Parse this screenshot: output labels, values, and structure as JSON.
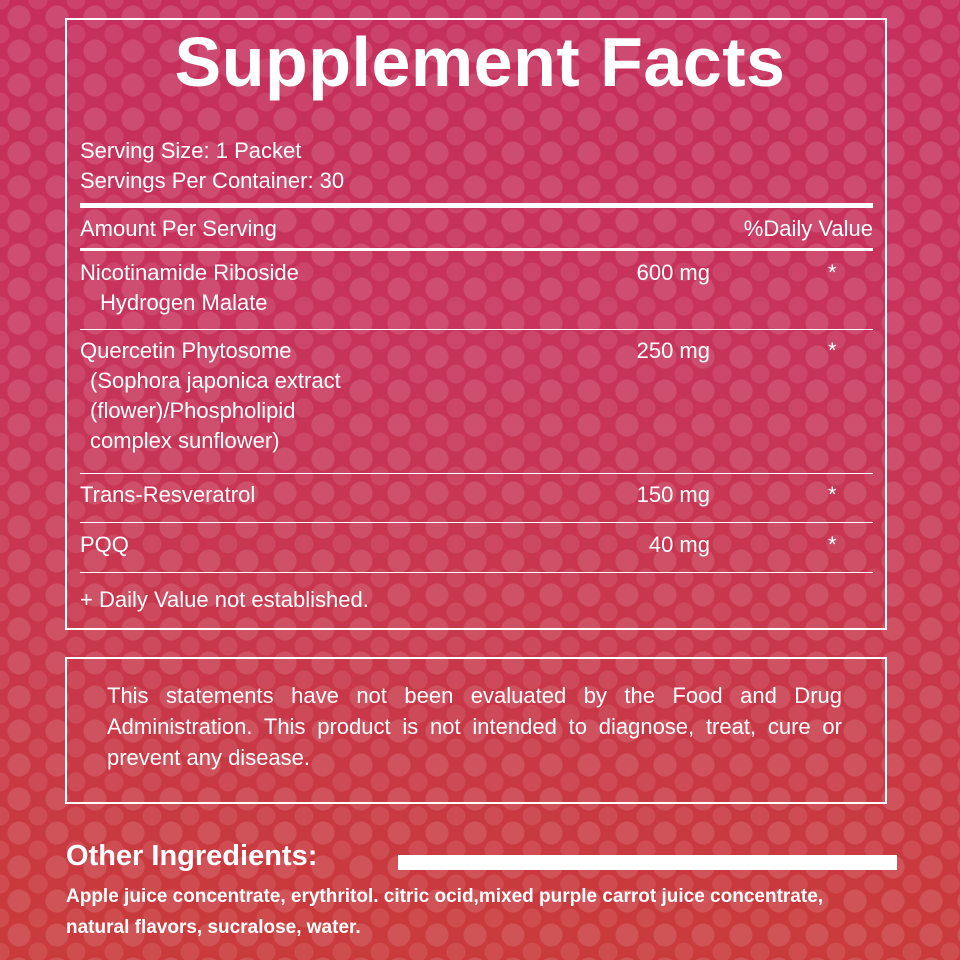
{
  "title": "Supplement Facts",
  "serving_size": "Serving Size: 1 Packet",
  "servings_per_container": "Servings Per Container: 30",
  "header": {
    "amount": "Amount Per Serving",
    "dv": "%Daily Value"
  },
  "rows": [
    {
      "name": "Nicotinamide Riboside",
      "sub": [
        "Hydrogen Malate"
      ],
      "amount": "600 mg",
      "dv": "*"
    },
    {
      "name": "Quercetin Phytosome",
      "sub": [
        "(Sophora japonica extract",
        "(flower)/Phospholipid",
        "complex sunflower)"
      ],
      "amount": "250 mg",
      "dv": "*"
    },
    {
      "name": "Trans-Resveratrol",
      "sub": [],
      "amount": "150 mg",
      "dv": "*"
    },
    {
      "name": "PQQ",
      "sub": [],
      "amount": "40 mg",
      "dv": "*"
    }
  ],
  "footnote": "+ Daily Value not established.",
  "statement": "This statements have not been evaluated by the Food and Drug Administration. This product is not intended to diagnose, treat, cure or prevent any disease.",
  "other_ingredients": {
    "heading": "Other Ingredients:",
    "text": "Apple juice concentrate, erythritol. citric ocid,mixed purple carrot juice concentrate, natural flavors, sucralose, water."
  },
  "colors": {
    "background_top": "#c62f5d",
    "background_bottom": "#c93b3b",
    "text": "#ffffff"
  }
}
